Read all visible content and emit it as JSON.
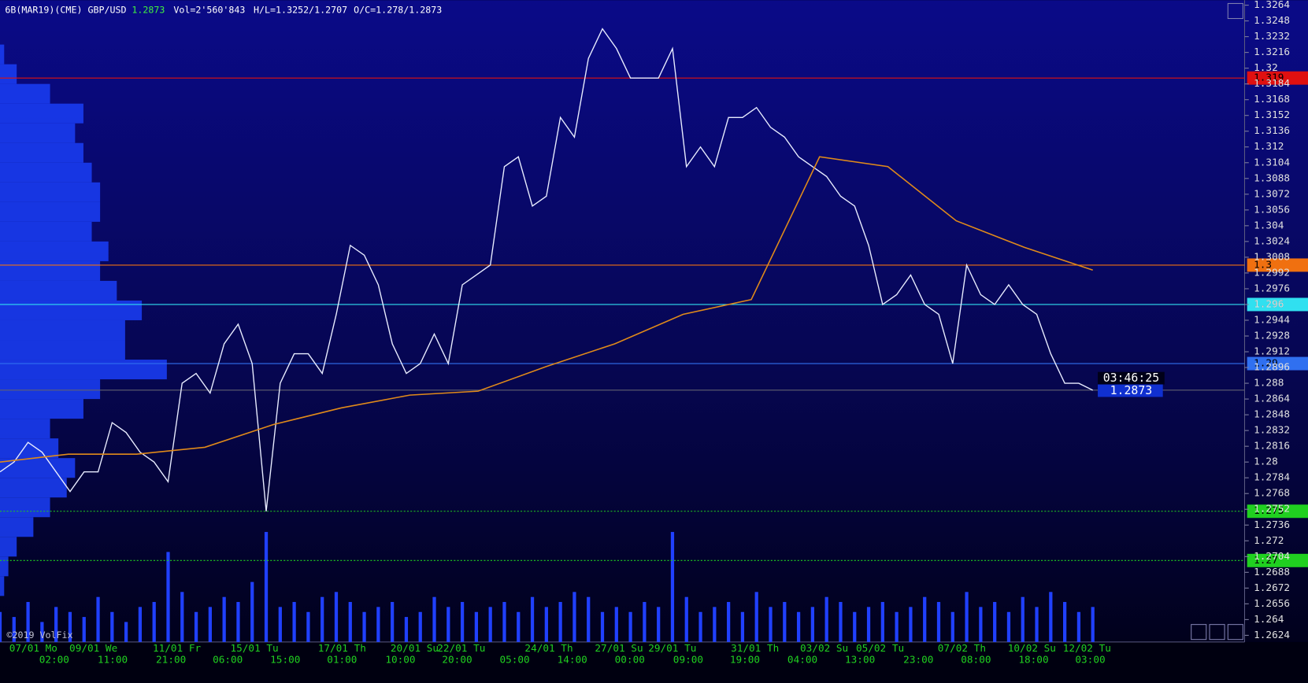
{
  "chart_data": {
    "type": "line",
    "header": {
      "symbol": "6B(MAR19)(CME) GBP/USD",
      "volume": "Vol=2'560'843",
      "high_low": "H/L=1.3252/1.2707",
      "open_close": "O/C=1.278/1.2873"
    },
    "last_price": 1.2873,
    "countdown": "03:46:25",
    "copyright": "©2019 VolFix",
    "ylim": [
      1.2624,
      1.3264
    ],
    "yticks": [
      1.3264,
      1.3248,
      1.3232,
      1.3216,
      1.32,
      1.3184,
      1.3168,
      1.3152,
      1.3136,
      1.312,
      1.3104,
      1.3088,
      1.3072,
      1.3056,
      1.304,
      1.3024,
      1.3008,
      1.2992,
      1.2976,
      1.296,
      1.2944,
      1.2928,
      1.2912,
      1.2896,
      1.288,
      1.2864,
      1.2848,
      1.2832,
      1.2816,
      1.28,
      1.2784,
      1.2768,
      1.2752,
      1.2736,
      1.272,
      1.2704,
      1.2688,
      1.2672,
      1.2656,
      1.264,
      1.2624
    ],
    "date_labels": [
      "07/01 Mo",
      "09/01 We",
      "11/01 Fr",
      "15/01 Tu",
      "17/01 Th",
      "20/01 Su",
      "22/01 Tu",
      "24/01 Th",
      "27/01 Su",
      "29/01 Tu",
      "31/01 Th",
      "03/02 Su",
      "05/02 Tu",
      "07/02 Th",
      "10/02 Su",
      "12/02 Tu"
    ],
    "time_labels": [
      "02:00",
      "11:00",
      "21:00",
      "06:00",
      "15:00",
      "01:00",
      "10:00",
      "20:00",
      "05:00",
      "14:00",
      "00:00",
      "09:00",
      "19:00",
      "04:00",
      "13:00",
      "23:00",
      "08:00",
      "18:00",
      "03:00"
    ],
    "levels": [
      {
        "label": "1.319",
        "value": 1.319,
        "color": "#e01010"
      },
      {
        "label": "1.3",
        "value": 1.3,
        "color": "#f07010"
      },
      {
        "label": "1.296",
        "value": 1.296,
        "color": "#30e0f0"
      },
      {
        "label": "1.29",
        "value": 1.29,
        "color": "#3070f0"
      },
      {
        "label": "1.275",
        "value": 1.275,
        "color": "#20d020"
      },
      {
        "label": "1.27",
        "value": 1.27,
        "color": "#20d020"
      }
    ],
    "series": [
      {
        "name": "GBP/USD",
        "color": "#e8ecff",
        "values": [
          1.279,
          1.28,
          1.282,
          1.281,
          1.279,
          1.277,
          1.279,
          1.279,
          1.284,
          1.283,
          1.281,
          1.28,
          1.278,
          1.288,
          1.289,
          1.287,
          1.292,
          1.294,
          1.29,
          1.275,
          1.288,
          1.291,
          1.291,
          1.289,
          1.295,
          1.302,
          1.301,
          1.298,
          1.292,
          1.289,
          1.29,
          1.293,
          1.29,
          1.298,
          1.299,
          1.3,
          1.31,
          1.311,
          1.306,
          1.307,
          1.315,
          1.313,
          1.321,
          1.324,
          1.322,
          1.319,
          1.319,
          1.319,
          1.322,
          1.31,
          1.312,
          1.31,
          1.315,
          1.315,
          1.316,
          1.314,
          1.313,
          1.311,
          1.31,
          1.309,
          1.307,
          1.306,
          1.302,
          1.296,
          1.297,
          1.299,
          1.296,
          1.295,
          1.29,
          1.3,
          1.297,
          1.296,
          1.298,
          1.296,
          1.295,
          1.291,
          1.288,
          1.288,
          1.2873
        ]
      },
      {
        "name": "VWAP",
        "color": "#e08a1a",
        "values": [
          1.28,
          1.2808,
          1.2808,
          1.2815,
          1.2838,
          1.2855,
          1.2868,
          1.2872,
          1.2897,
          1.292,
          1.295,
          1.2965,
          1.311,
          1.31,
          1.3045,
          1.3018,
          1.2995
        ]
      }
    ],
    "volume": [
      30,
      25,
      40,
      20,
      35,
      30,
      25,
      45,
      30,
      20,
      35,
      40,
      90,
      50,
      30,
      35,
      45,
      40,
      60,
      110,
      35,
      40,
      30,
      45,
      50,
      40,
      30,
      35,
      40,
      25,
      30,
      45,
      35,
      40,
      30,
      35,
      40,
      30,
      45,
      35,
      40,
      50,
      45,
      30,
      35,
      30,
      40,
      35,
      110,
      45,
      30,
      35,
      40,
      30,
      50,
      35,
      40,
      30,
      35,
      45,
      40,
      30,
      35,
      40,
      30,
      35,
      45,
      40,
      30,
      50,
      35,
      40,
      30,
      45,
      35,
      50,
      40,
      30,
      35
    ],
    "volume_profile": {
      "prices": [
        1.3224,
        1.3204,
        1.3184,
        1.3164,
        1.3144,
        1.3124,
        1.3104,
        1.3084,
        1.3064,
        1.3044,
        1.3024,
        1.3004,
        1.2984,
        1.2964,
        1.2944,
        1.2924,
        1.2904,
        1.2884,
        1.2864,
        1.2844,
        1.2824,
        1.2804,
        1.2784,
        1.2764,
        1.2744,
        1.2724,
        1.2704,
        1.2684
      ],
      "widths": [
        5,
        20,
        60,
        100,
        90,
        100,
        110,
        120,
        120,
        110,
        130,
        120,
        140,
        170,
        150,
        150,
        200,
        120,
        100,
        60,
        70,
        90,
        80,
        60,
        40,
        20,
        10,
        5
      ]
    }
  }
}
